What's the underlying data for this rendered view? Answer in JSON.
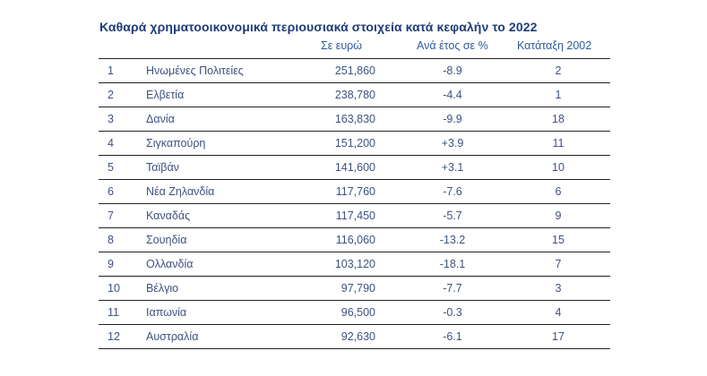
{
  "title": "Καθαρά χρηματοοικονομικά περιουσιακά στοιχεία κατά κεφαλήν το 2022",
  "headers": {
    "value": "Σε ευρώ",
    "pct": "Ανά έτος σε %",
    "rank2002": "Κατάταξη 2002"
  },
  "rows": [
    {
      "rank": "1",
      "country": "Ηνωμένες Πολιτείες",
      "value": "251,860",
      "pct": "-8.9",
      "rank2002": "2"
    },
    {
      "rank": "2",
      "country": "Ελβετία",
      "value": "238,780",
      "pct": "-4.4",
      "rank2002": "1"
    },
    {
      "rank": "3",
      "country": "Δανία",
      "value": "163,830",
      "pct": "-9.9",
      "rank2002": "18"
    },
    {
      "rank": "4",
      "country": "Σιγκαπούρη",
      "value": "151,200",
      "pct": "+3.9",
      "rank2002": "11"
    },
    {
      "rank": "5",
      "country": "Ταϊβάν",
      "value": "141,600",
      "pct": "+3.1",
      "rank2002": "10"
    },
    {
      "rank": "6",
      "country": "Νέα Ζηλανδία",
      "value": "117,760",
      "pct": "-7.6",
      "rank2002": "6"
    },
    {
      "rank": "7",
      "country": "Καναδάς",
      "value": "117,450",
      "pct": "-5.7",
      "rank2002": "9"
    },
    {
      "rank": "8",
      "country": "Σουηδία",
      "value": "116,060",
      "pct": "-13.2",
      "rank2002": "15"
    },
    {
      "rank": "9",
      "country": "Ολλανδία",
      "value": "103,120",
      "pct": "-18.1",
      "rank2002": "7"
    },
    {
      "rank": "10",
      "country": "Βέλγιο",
      "value": "97,790",
      "pct": "-7.7",
      "rank2002": "3"
    },
    {
      "rank": "11",
      "country": "Ιαπωνία",
      "value": "96,500",
      "pct": "-0.3",
      "rank2002": "4"
    },
    {
      "rank": "12",
      "country": "Αυστραλία",
      "value": "92,630",
      "pct": "-6.1",
      "rank2002": "17"
    }
  ]
}
